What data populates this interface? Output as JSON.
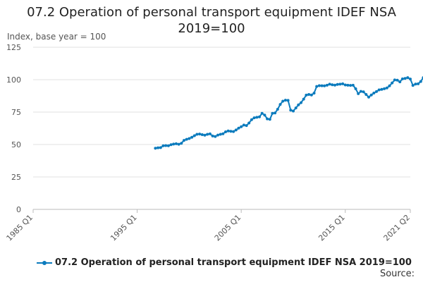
{
  "chart_data": {
    "type": "line",
    "title_lines": [
      "07.2 Operation of personal transport equipment IDEF NSA",
      "2019=100"
    ],
    "ylabel": "Index, base year = 100",
    "ylim": [
      0,
      125
    ],
    "yticks": [
      0,
      25,
      50,
      75,
      100,
      125
    ],
    "xlim": [
      1985,
      2021.25
    ],
    "xticks": [
      {
        "label": "1985 Q1",
        "x": 1985
      },
      {
        "label": "1995 Q1",
        "x": 1995
      },
      {
        "label": "2005 Q1",
        "x": 2005
      },
      {
        "label": "2015 Q1",
        "x": 2015
      },
      {
        "label": "2021 Q2",
        "x": 2021.25
      }
    ],
    "grid": true,
    "legend_position": "bottom",
    "series": [
      {
        "name": "07.2 Operation of personal transport equipment IDEF NSA 2019=100",
        "color": "#0b7bbd",
        "points": [
          [
            1996.75,
            47.2
          ],
          [
            1997.0,
            47.5
          ],
          [
            1997.25,
            47.6
          ],
          [
            1997.5,
            49.0
          ],
          [
            1997.75,
            49.2
          ],
          [
            1998.0,
            49.0
          ],
          [
            1998.25,
            49.9
          ],
          [
            1998.5,
            50.3
          ],
          [
            1998.75,
            50.6
          ],
          [
            1999.0,
            50.2
          ],
          [
            1999.25,
            51.0
          ],
          [
            1999.5,
            53.2
          ],
          [
            1999.75,
            54.0
          ],
          [
            2000.0,
            54.6
          ],
          [
            2000.25,
            55.6
          ],
          [
            2000.5,
            56.8
          ],
          [
            2000.75,
            57.9
          ],
          [
            2001.0,
            58.1
          ],
          [
            2001.25,
            57.6
          ],
          [
            2001.5,
            57.2
          ],
          [
            2001.75,
            57.9
          ],
          [
            2002.0,
            58.2
          ],
          [
            2002.25,
            56.6
          ],
          [
            2002.5,
            56.2
          ],
          [
            2002.75,
            57.3
          ],
          [
            2003.0,
            57.9
          ],
          [
            2003.25,
            58.3
          ],
          [
            2003.5,
            59.8
          ],
          [
            2003.75,
            60.5
          ],
          [
            2004.0,
            60.2
          ],
          [
            2004.25,
            60.0
          ],
          [
            2004.5,
            61.2
          ],
          [
            2004.75,
            62.6
          ],
          [
            2005.0,
            63.7
          ],
          [
            2005.25,
            65.0
          ],
          [
            2005.5,
            64.6
          ],
          [
            2005.75,
            66.6
          ],
          [
            2006.0,
            69.2
          ],
          [
            2006.25,
            70.6
          ],
          [
            2006.5,
            71.0
          ],
          [
            2006.75,
            71.3
          ],
          [
            2007.0,
            74.0
          ],
          [
            2007.25,
            72.7
          ],
          [
            2007.5,
            69.8
          ],
          [
            2007.75,
            69.4
          ],
          [
            2008.0,
            74.0
          ],
          [
            2008.25,
            74.3
          ],
          [
            2008.5,
            77.2
          ],
          [
            2008.75,
            80.9
          ],
          [
            2009.0,
            83.4
          ],
          [
            2009.25,
            84.2
          ],
          [
            2009.5,
            84.0
          ],
          [
            2009.75,
            76.5
          ],
          [
            2010.0,
            75.8
          ],
          [
            2010.25,
            78.2
          ],
          [
            2010.5,
            80.6
          ],
          [
            2010.75,
            82.3
          ],
          [
            2011.0,
            85.0
          ],
          [
            2011.25,
            88.1
          ],
          [
            2011.5,
            88.6
          ],
          [
            2011.75,
            88.2
          ],
          [
            2012.0,
            89.6
          ],
          [
            2012.25,
            94.8
          ],
          [
            2012.5,
            95.4
          ],
          [
            2012.75,
            95.3
          ],
          [
            2013.0,
            95.2
          ],
          [
            2013.25,
            95.7
          ],
          [
            2013.5,
            96.5
          ],
          [
            2013.75,
            96.1
          ],
          [
            2014.0,
            95.8
          ],
          [
            2014.25,
            96.3
          ],
          [
            2014.5,
            96.5
          ],
          [
            2014.75,
            96.8
          ],
          [
            2015.0,
            95.9
          ],
          [
            2015.25,
            95.7
          ],
          [
            2015.5,
            95.6
          ],
          [
            2015.75,
            95.7
          ],
          [
            2016.0,
            93.0
          ],
          [
            2016.25,
            89.2
          ],
          [
            2016.5,
            91.0
          ],
          [
            2016.75,
            90.6
          ],
          [
            2017.0,
            88.6
          ],
          [
            2017.25,
            86.5
          ],
          [
            2017.5,
            88.2
          ],
          [
            2017.75,
            89.7
          ],
          [
            2018.0,
            90.8
          ],
          [
            2018.25,
            92.1
          ],
          [
            2018.5,
            92.5
          ],
          [
            2018.75,
            93.0
          ],
          [
            2019.0,
            93.6
          ],
          [
            2019.25,
            95.2
          ],
          [
            2019.5,
            97.5
          ],
          [
            2019.75,
            99.8
          ],
          [
            2020.0,
            99.6
          ],
          [
            2020.25,
            98.3
          ],
          [
            2020.5,
            100.6
          ],
          [
            2020.75,
            101.0
          ],
          [
            2021.0,
            101.6
          ],
          [
            2021.25,
            100.5
          ],
          [
            2021.5,
            95.6
          ],
          [
            2021.75,
            96.6
          ],
          [
            2022.0,
            96.8
          ],
          [
            2022.25,
            98.6
          ],
          [
            2022.5,
            101.6
          ],
          [
            2022.75,
            103.4
          ]
        ]
      }
    ]
  },
  "source_label": "Source:"
}
